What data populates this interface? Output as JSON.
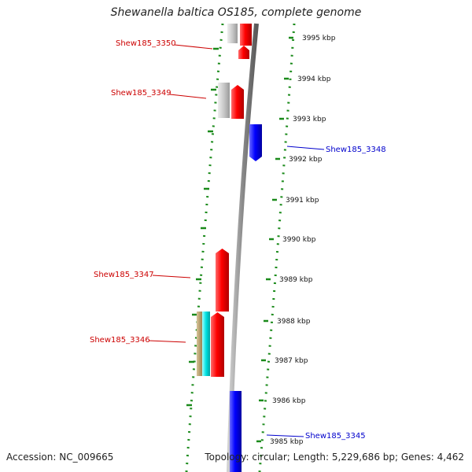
{
  "title": "Shewanella baltica OS185, complete genome",
  "footer": {
    "accession": "Accession: NC_009665",
    "topology": "Topology: circular; Length: 5,229,686 bp; Genes: 4,462"
  },
  "ticks": [
    "3995 kbp",
    "3994 kbp",
    "3993 kbp",
    "3992 kbp",
    "3991 kbp",
    "3990 kbp",
    "3989 kbp",
    "3988 kbp",
    "3987 kbp",
    "3986 kbp",
    "3985 kbp"
  ],
  "genes": [
    {
      "label": "Shew185_3350",
      "color": "#cc0000"
    },
    {
      "label": "Shew185_3349",
      "color": "#cc0000"
    },
    {
      "label": "Shew185_3348",
      "color": "#0000cc"
    },
    {
      "label": "Shew185_3347",
      "color": "#cc0000"
    },
    {
      "label": "Shew185_3346",
      "color": "#cc0000"
    },
    {
      "label": "Shew185_3345",
      "color": "#0000cc"
    }
  ],
  "colors": {
    "forward": "#ff0000",
    "reverse": "#0000ff",
    "grey": "#bdbdbd",
    "cyan": "#00e5e5",
    "tan": "#b8a070",
    "dots": "#1a8a1a",
    "backbone": "#8a8a8a"
  }
}
